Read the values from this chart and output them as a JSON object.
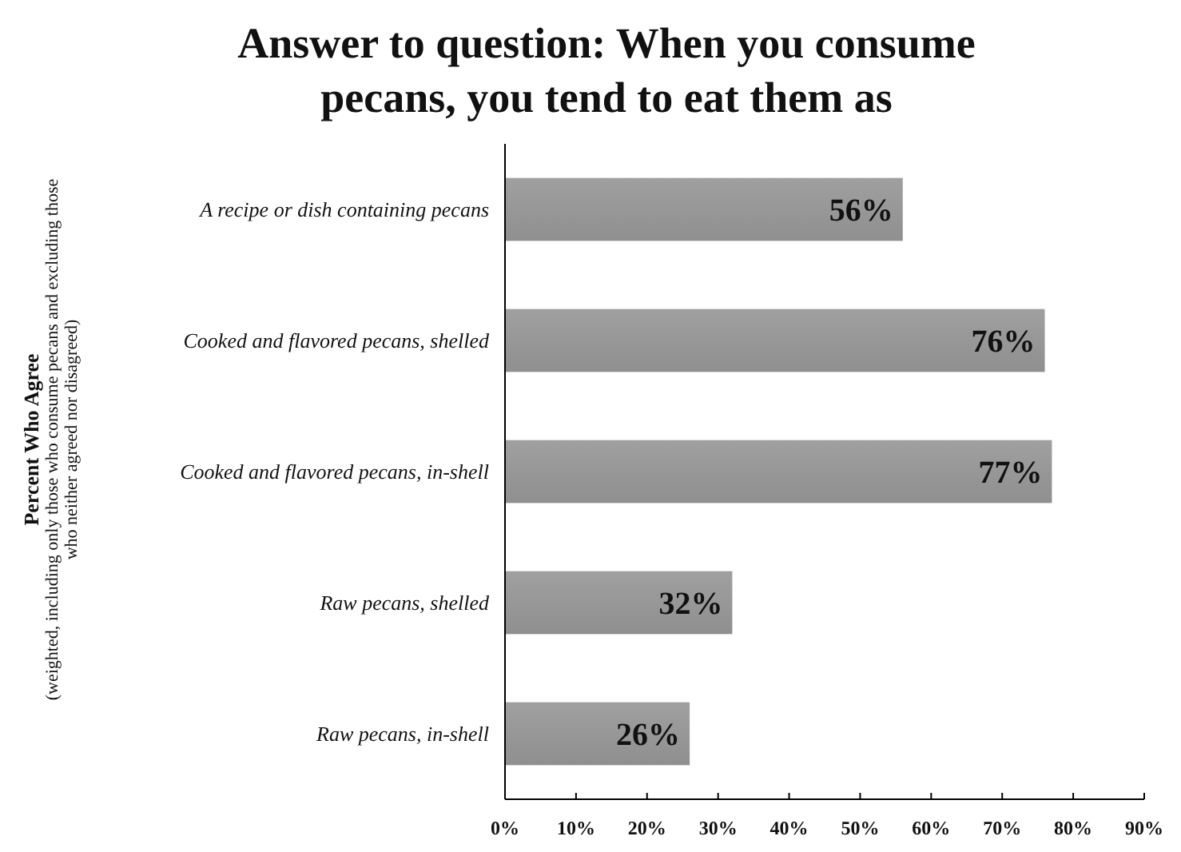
{
  "chart_data": {
    "type": "bar",
    "orientation": "horizontal",
    "title": "Answer to question: When you consume\npecans, you tend to eat them as",
    "ylabel": "Percent Who Agree\n(weighted, including only those who consume pecans and excluding those\nwho neither agreed nor disagreed)",
    "categories": [
      "A recipe or dish containing pecans",
      "Cooked and flavored pecans, shelled",
      "Cooked and flavored pecans, in-shell",
      "Raw pecans, shelled",
      "Raw pecans, in-shell"
    ],
    "values": [
      56,
      76,
      77,
      32,
      26
    ],
    "value_labels": [
      "56%",
      "76%",
      "77%",
      "32%",
      "26%"
    ],
    "color": "#8f8f8f",
    "xlim": [
      0,
      90
    ],
    "xticks": [
      {
        "value": 0,
        "label": "0%"
      },
      {
        "value": 10,
        "label": "10%"
      },
      {
        "value": 20,
        "label": "20%"
      },
      {
        "value": 30,
        "label": "30%"
      },
      {
        "value": 40,
        "label": "40%"
      },
      {
        "value": 50,
        "label": "50%"
      },
      {
        "value": 60,
        "label": "60%"
      },
      {
        "value": 70,
        "label": "70%"
      },
      {
        "value": 80,
        "label": "80%"
      },
      {
        "value": 90,
        "label": "90%"
      }
    ],
    "grid": false
  }
}
